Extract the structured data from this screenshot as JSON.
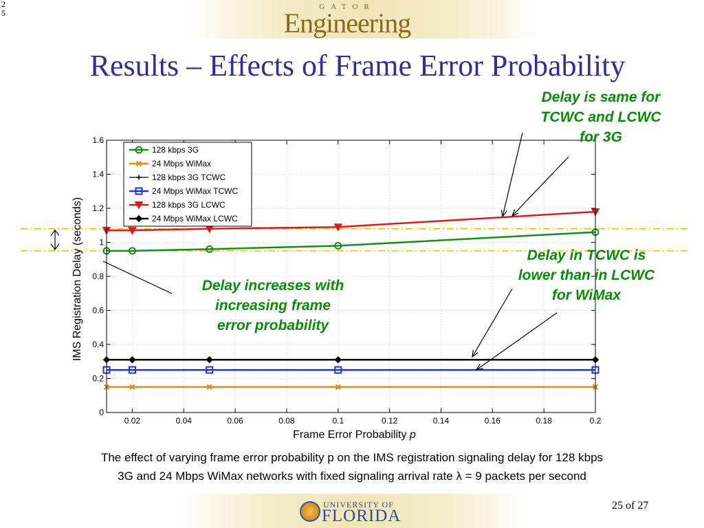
{
  "slide": {
    "corner_number": [
      "2",
      "5"
    ],
    "header_logo": {
      "small": "GATOR",
      "big": "Engineering"
    },
    "title": "Results – Effects of Frame Error Probability",
    "annotations": {
      "top": [
        "Delay is same for",
        "TCWC and LCWC",
        "for 3G"
      ],
      "middle": [
        "Delay in TCWC is",
        "lower than in LCWC",
        "for WiMax"
      ],
      "left": [
        "Delay increases with",
        "increasing frame",
        "error probability"
      ]
    },
    "caption": [
      "The effect of varying frame error probability p on the IMS registration signaling delay for 128 kbps",
      "3G and 24 Mbps WiMax networks with fixed signaling arrival rate λ = 9 packets per second"
    ],
    "footer_logo": {
      "small": "UNIVERSITY OF",
      "big": "FLORIDA"
    },
    "page_label": "25 of 27"
  },
  "chart_data": {
    "type": "line",
    "xlabel": "Frame Error Probability ",
    "xlabel_var": "p",
    "ylabel": "IMS Registration Delay (seconds)",
    "xlim": [
      0.01,
      0.2
    ],
    "ylim": [
      0,
      1.6
    ],
    "xticks": [
      0.02,
      0.04,
      0.06,
      0.08,
      0.1,
      0.12,
      0.14,
      0.16,
      0.18,
      0.2
    ],
    "xtick_labels": [
      "0.02",
      "0.04",
      "0.06",
      "0.08",
      "0.1",
      "0.12",
      "0.14",
      "0.16",
      "0.18",
      "0.2"
    ],
    "yticks": [
      0,
      0.2,
      0.4,
      0.6,
      0.8,
      1,
      1.2,
      1.4,
      1.6
    ],
    "ytick_labels": [
      "0",
      "0.2",
      "0.4",
      "0.6",
      "0.8",
      "1",
      "1.2",
      "1.4",
      "1.6"
    ],
    "grid": true,
    "legend_position": "top-left",
    "x": [
      0.01,
      0.02,
      0.05,
      0.1,
      0.2
    ],
    "series": [
      {
        "name": "128 kbps 3G",
        "color": "#1a8a1a",
        "marker": "circle",
        "values": [
          0.95,
          0.95,
          0.96,
          0.98,
          1.06
        ]
      },
      {
        "name": "24 Mbps WiMax",
        "color": "#e08a1e",
        "marker": "x",
        "values": [
          0.15,
          0.15,
          0.15,
          0.15,
          0.15
        ]
      },
      {
        "name": "128 kbps 3G TCWC",
        "color": "#000000",
        "marker": "plus",
        "values": [
          1.07,
          1.07,
          1.08,
          1.09,
          1.18
        ]
      },
      {
        "name": "24 Mbps WiMax TCWC",
        "color": "#1f35c8",
        "marker": "square",
        "values": [
          0.25,
          0.25,
          0.25,
          0.25,
          0.25
        ]
      },
      {
        "name": "128 kbps 3G LCWC",
        "color": "#dd1a1a",
        "marker": "triangle-down",
        "values": [
          1.07,
          1.07,
          1.08,
          1.09,
          1.18
        ]
      },
      {
        "name": "24 Mbps WiMax LCWC",
        "color": "#000000",
        "marker": "diamond",
        "values": [
          0.31,
          0.31,
          0.31,
          0.31,
          0.31
        ]
      }
    ],
    "reference_lines": {
      "color": "#f5b800",
      "values": [
        1.08,
        0.95
      ]
    }
  }
}
